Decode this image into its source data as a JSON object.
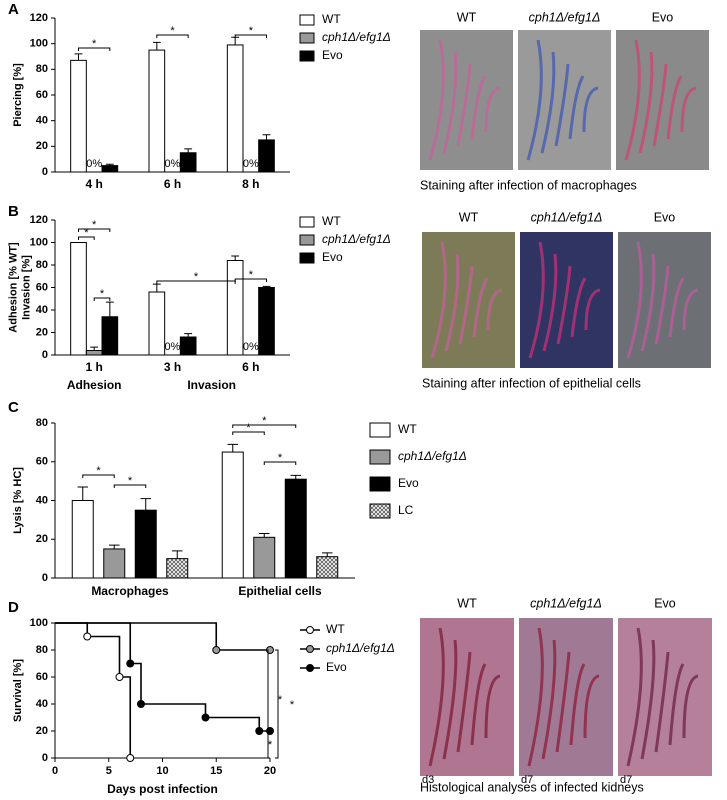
{
  "chart_data": [
    {
      "type": "bar",
      "panel": "A",
      "ylabel": [
        "Piercing [%]"
      ],
      "categories": [
        "4  h",
        "6  h",
        "8  h"
      ],
      "series": [
        {
          "name": "WT",
          "color": "#ffffff",
          "values": [
            87,
            95,
            99
          ],
          "errors": [
            5,
            6,
            6
          ]
        },
        {
          "name": "cph1Δ/efg1Δ",
          "color": "#999999",
          "values": [
            0,
            0,
            0
          ],
          "value_labels": [
            "0%",
            "0%",
            "0%"
          ]
        },
        {
          "name": "Evo",
          "color": "#000000",
          "values": [
            5,
            15,
            25
          ],
          "errors": [
            1,
            3,
            4
          ]
        }
      ],
      "ylim": [
        0,
        120
      ],
      "yticks": [
        0,
        20,
        40,
        60,
        80,
        100,
        120
      ],
      "significance": [
        "*",
        "*",
        "*"
      ],
      "images": {
        "labels": [
          "WT",
          "cph1Δ/efg1Δ",
          "Evo"
        ],
        "caption": "Staining after infection of macrophages"
      }
    },
    {
      "type": "bar",
      "panel": "B",
      "ylabel": [
        "Adhesion [% WT]",
        "Invasion [%]"
      ],
      "categories": [
        "1  h",
        "3  h",
        "6  h"
      ],
      "group_labels": [
        "Adhesion",
        "Invasion"
      ],
      "series": [
        {
          "name": "WT",
          "color": "#ffffff",
          "values": [
            100,
            56,
            84
          ],
          "errors": [
            0,
            7,
            4
          ]
        },
        {
          "name": "cph1Δ/efg1Δ",
          "color": "#999999",
          "values": [
            4,
            0,
            0
          ],
          "errors": [
            3,
            0,
            0
          ],
          "value_labels": [
            null,
            "0%",
            "0%"
          ]
        },
        {
          "name": "Evo",
          "color": "#000000",
          "values": [
            34,
            16,
            60
          ],
          "errors": [
            13,
            3,
            1
          ]
        }
      ],
      "ylim": [
        0,
        120
      ],
      "yticks": [
        0,
        20,
        40,
        60,
        80,
        100,
        120
      ],
      "significance": [
        "*",
        "*",
        "*",
        "*",
        "*"
      ],
      "images": {
        "labels": [
          "WT",
          "cph1Δ/efg1Δ",
          "Evo"
        ],
        "caption": "Staining after infection of epithelial cells"
      }
    },
    {
      "type": "bar",
      "panel": "C",
      "ylabel": [
        "Lysis [% HC]"
      ],
      "categories": [
        "Macrophages",
        "Epithelial cells"
      ],
      "series": [
        {
          "name": "WT",
          "color": "#ffffff",
          "values": [
            40,
            65
          ],
          "errors": [
            7,
            4
          ]
        },
        {
          "name": "cph1Δ/efg1Δ",
          "color": "#999999",
          "values": [
            15,
            21
          ],
          "errors": [
            2,
            2
          ]
        },
        {
          "name": "Evo",
          "color": "#000000",
          "values": [
            35,
            51
          ],
          "errors": [
            6,
            2
          ]
        },
        {
          "name": "LC",
          "color": "#ffffff",
          "hatch": true,
          "values": [
            10,
            11
          ],
          "errors": [
            4,
            2
          ]
        }
      ],
      "ylim": [
        0,
        80
      ],
      "yticks": [
        0,
        20,
        40,
        60,
        80
      ],
      "significance": [
        "*",
        "*",
        "*",
        "*",
        "*"
      ]
    },
    {
      "type": "line",
      "step": true,
      "panel": "D",
      "ylabel": [
        "Survival [%]"
      ],
      "xlabel": "Days post infection",
      "series": [
        {
          "name": "WT",
          "color": "#ffffff",
          "x": [
            0,
            3,
            6,
            7
          ],
          "values": [
            100,
            90,
            60,
            0
          ]
        },
        {
          "name": "cph1Δ/efg1Δ",
          "color": "#999999",
          "x": [
            0,
            15,
            20
          ],
          "values": [
            100,
            80,
            80
          ]
        },
        {
          "name": "Evo",
          "color": "#000000",
          "x": [
            0,
            7,
            8,
            14,
            19,
            20
          ],
          "values": [
            100,
            70,
            40,
            30,
            20,
            20
          ]
        }
      ],
      "xlim": [
        0,
        20
      ],
      "xticks": [
        0,
        5,
        10,
        15,
        20
      ],
      "ylim": [
        0,
        100
      ],
      "yticks": [
        0,
        20,
        40,
        60,
        80,
        100
      ],
      "significance": [
        "*",
        "*",
        "*"
      ],
      "images": {
        "labels": [
          "WT",
          "cph1Δ/efg1Δ",
          "Evo"
        ],
        "days": [
          "d3",
          "d7",
          "d7"
        ],
        "caption": "Histological analyses of infected kidneys"
      }
    }
  ]
}
